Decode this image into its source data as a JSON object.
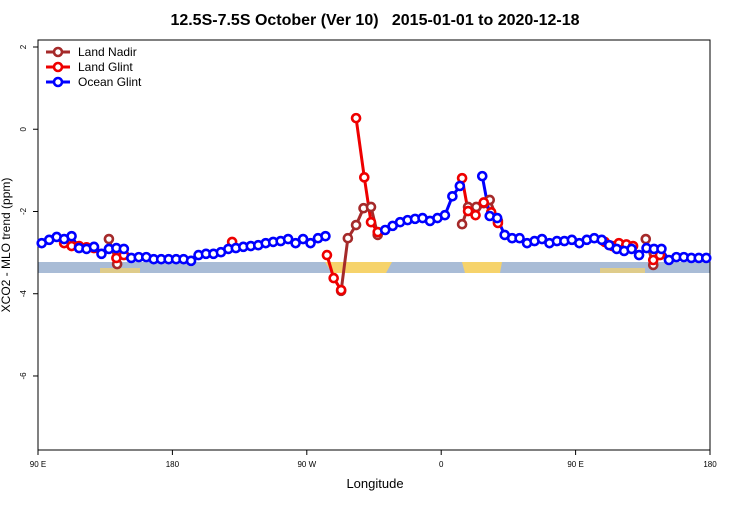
{
  "chart_data": {
    "type": "line",
    "title": "12.5S-7.5S October (Ver 10)   2015-01-01 to 2020-12-18",
    "x_label": "Longitude",
    "y_label": "XCO2 - MLO trend (ppm)",
    "xlim": [
      90,
      540
    ],
    "ylim": [
      -7.8,
      2.17
    ],
    "xticks": [
      {
        "value": 90,
        "label": "90 E"
      },
      180,
      {
        "value": 270,
        "label": "90 W"
      },
      {
        "value": 360,
        "label": "0"
      },
      {
        "value": 450,
        "label": "90 E"
      },
      {
        "value": 540,
        "label": "180"
      }
    ],
    "yticks": [
      2,
      0,
      -2,
      -4,
      -6
    ],
    "legend": "top-left",
    "series": [
      {
        "name": "Land Nadir",
        "color": "#a52a2a",
        "x": [
          137.5,
          143,
          218,
          293,
          297.5,
          303,
          308,
          313,
          317.5,
          345,
          374,
          378,
          383.5,
          388.5,
          392.5,
          398,
          450,
          497,
          502
        ],
        "values": [
          -2.67,
          -3.28,
          null,
          -3.93,
          -2.65,
          -2.33,
          -1.92,
          -1.89,
          -2.57,
          null,
          -2.31,
          -1.89,
          -1.89,
          -1.8,
          -1.72,
          -2.23,
          null,
          -2.67,
          -3.3
        ]
      },
      {
        "name": "Land Glint",
        "color": "#ee0000",
        "x": [
          107.5,
          112.5,
          117.5,
          122.5,
          127.5,
          135,
          142.5,
          147.5,
          180,
          220,
          250,
          283.5,
          288,
          293,
          298,
          303,
          308.5,
          313,
          317.5,
          345,
          374,
          378,
          383,
          388.5,
          393.5,
          398,
          430,
          469.5,
          474.5,
          479,
          484,
          488.5,
          495,
          502,
          506.5
        ],
        "values": [
          -2.77,
          -2.84,
          -2.84,
          -2.87,
          -2.89,
          null,
          -3.13,
          -3.06,
          null,
          -2.74,
          null,
          -3.06,
          -3.62,
          -3.91,
          null,
          0.27,
          -1.17,
          -2.26,
          -2.5,
          null,
          -1.19,
          -1.99,
          -2.09,
          -1.78,
          -2.02,
          -2.28,
          null,
          -2.74,
          -2.84,
          -2.77,
          -2.8,
          -2.84,
          null,
          -3.18,
          -3.06
        ]
      },
      {
        "name": "Ocean Glint",
        "color": "#0000ff",
        "x": [
          92.5,
          97.5,
          102.5,
          107.5,
          112.5,
          117.5,
          122.5,
          127.5,
          132.5,
          137.5,
          142.5,
          147.5,
          152.5,
          157.5,
          162.5,
          167.5,
          172.5,
          177.5,
          182.5,
          187.5,
          192.5,
          197.5,
          202.5,
          207.5,
          212.5,
          217.5,
          222.5,
          227.5,
          232.5,
          237.5,
          242.5,
          247.5,
          252.5,
          257.5,
          262.5,
          267.5,
          272.5,
          277.5,
          282.5,
          302.5,
          322.5,
          327.5,
          332.5,
          337.5,
          342.5,
          347.5,
          352.5,
          357.5,
          362.5,
          367.5,
          372.5,
          380,
          387.5,
          392.5,
          397.5,
          402.5,
          407.5,
          412.5,
          417.5,
          422.5,
          427.5,
          432.5,
          437.5,
          442.5,
          447.5,
          452.5,
          457.5,
          462.5,
          467.5,
          472.5,
          477.5,
          482.5,
          487.5,
          492.5,
          497.5,
          502.5,
          507.5,
          512.5,
          517.5,
          522.5,
          527.5,
          532.5,
          537.5
        ],
        "values": [
          -2.77,
          -2.69,
          -2.62,
          -2.67,
          -2.6,
          -2.89,
          -2.91,
          -2.86,
          -3.03,
          -2.91,
          -2.89,
          -2.91,
          -3.13,
          -3.11,
          -3.11,
          -3.16,
          -3.16,
          -3.16,
          -3.16,
          -3.16,
          -3.2,
          -3.06,
          -3.03,
          -3.03,
          -2.99,
          -2.91,
          -2.89,
          -2.86,
          -2.84,
          -2.82,
          -2.77,
          -2.74,
          -2.72,
          -2.67,
          -2.77,
          -2.67,
          -2.77,
          -2.65,
          -2.6,
          null,
          -2.45,
          -2.35,
          -2.26,
          -2.21,
          -2.18,
          -2.16,
          -2.23,
          -2.16,
          -2.09,
          -1.63,
          -1.38,
          null,
          -1.14,
          -2.11,
          -2.16,
          -2.57,
          -2.65,
          -2.65,
          -2.77,
          -2.72,
          -2.67,
          -2.77,
          -2.72,
          -2.72,
          -2.69,
          -2.77,
          -2.69,
          -2.65,
          -2.69,
          -2.82,
          -2.91,
          -2.96,
          -2.91,
          -3.06,
          -2.89,
          -2.91,
          -2.91,
          -3.18,
          -3.11,
          -3.11,
          -3.13,
          -3.13,
          -3.13
        ]
      }
    ]
  }
}
